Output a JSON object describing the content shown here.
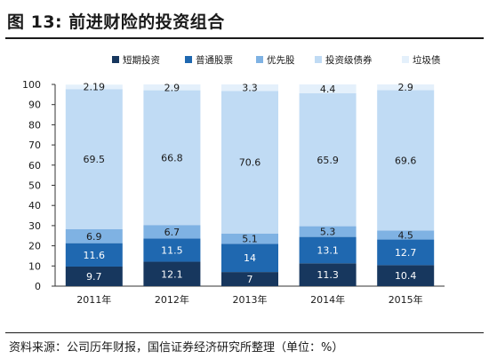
{
  "figure_title": "图 13:  前进财险的投资组合",
  "source_note": "资料来源：公司历年财报，国信证券经济研究所整理（单位：%）",
  "chart_data": {
    "type": "bar",
    "stacked": true,
    "categories": [
      "2011年",
      "2012年",
      "2013年",
      "2014年",
      "2015年"
    ],
    "series": [
      {
        "name": "短期投资",
        "color": "#17375e",
        "label_color": "#ffffff",
        "values": [
          9.7,
          12.1,
          7,
          11.3,
          10.4
        ]
      },
      {
        "name": "普通股票",
        "color": "#1f68b0",
        "label_color": "#ffffff",
        "values": [
          11.6,
          11.5,
          14,
          13.1,
          12.7
        ]
      },
      {
        "name": "优先股",
        "color": "#7fb2e3",
        "label_color": "#1a1a1a",
        "values": [
          6.9,
          6.7,
          5.1,
          5.3,
          4.5
        ]
      },
      {
        "name": "投资级债券",
        "color": "#c0dbf4",
        "label_color": "#1a1a1a",
        "values": [
          69.5,
          66.8,
          70.6,
          65.9,
          69.6
        ]
      },
      {
        "name": "垃圾债",
        "color": "#e4f0fb",
        "label_color": "#1a1a1a",
        "values": [
          2.19,
          2.9,
          3.3,
          4.4,
          2.9
        ]
      }
    ],
    "value_labels": [
      [
        "9.7",
        "12.1",
        "7",
        "11.3",
        "10.4"
      ],
      [
        "11.6",
        "11.5",
        "14",
        "13.1",
        "12.7"
      ],
      [
        "6.9",
        "6.7",
        "5.1",
        "5.3",
        "4.5"
      ],
      [
        "69.5",
        "66.8",
        "70.6",
        "65.9",
        "69.6"
      ],
      [
        "2.19",
        "2.9",
        "3.3",
        "4.4",
        "2.9"
      ]
    ],
    "ylim": [
      0,
      100
    ],
    "yticks": [
      0,
      10,
      20,
      30,
      40,
      50,
      60,
      70,
      80,
      90,
      100
    ],
    "legend_position": "top-center",
    "grid": false
  }
}
